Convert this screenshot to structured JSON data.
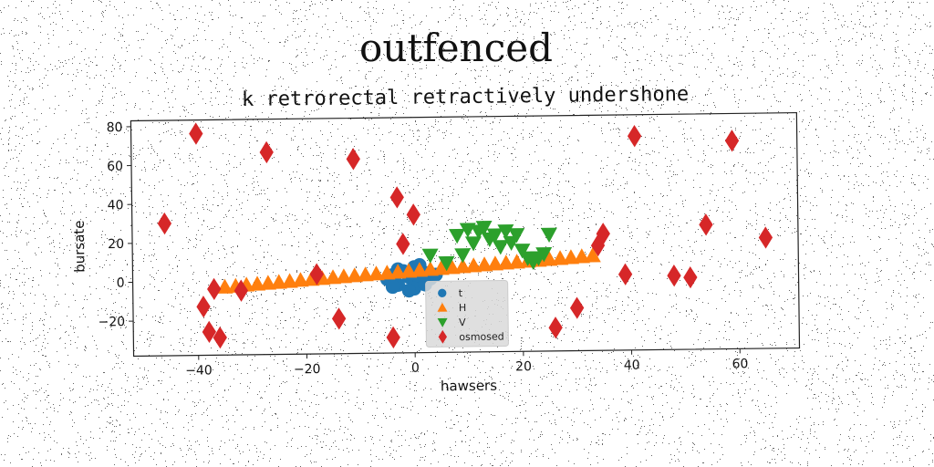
{
  "figure": {
    "title": "outfenced"
  },
  "chart_data": {
    "type": "scatter",
    "title": "k retrorectal retractively undershone",
    "xlabel": "hawsers",
    "ylabel": "bursate",
    "xlim": [
      -52,
      71
    ],
    "ylim": [
      -38,
      83
    ],
    "xticks": [
      -40,
      -20,
      0,
      20,
      40,
      60
    ],
    "yticks": [
      -20,
      0,
      20,
      40,
      60,
      80
    ],
    "grid": false,
    "legend_position": "lower-center",
    "series": [
      {
        "name": "t",
        "marker": "circle",
        "color": "#1f77b4",
        "points": [
          [
            -5,
            0
          ],
          [
            -4,
            2
          ],
          [
            -3,
            -3
          ],
          [
            -2,
            4
          ],
          [
            -1,
            1
          ],
          [
            0,
            6
          ],
          [
            1,
            -2
          ],
          [
            2,
            3
          ],
          [
            -4,
            -4
          ],
          [
            3,
            0
          ],
          [
            0,
            -5
          ],
          [
            -3,
            5
          ],
          [
            1,
            7
          ],
          [
            4,
            2
          ],
          [
            -1,
            -6
          ],
          [
            2,
            -3
          ]
        ]
      },
      {
        "name": "H",
        "marker": "triangle-up",
        "color": "#ff7f0e",
        "points": [
          [
            -35,
            -3
          ],
          [
            -33,
            -2.6
          ],
          [
            -31,
            -2.1
          ],
          [
            -29,
            -1.7
          ],
          [
            -27,
            -1.3
          ],
          [
            -25,
            -0.9
          ],
          [
            -23,
            -0.5
          ],
          [
            -21,
            0
          ],
          [
            -19,
            0.4
          ],
          [
            -17,
            0.8
          ],
          [
            -15,
            1.2
          ],
          [
            -13,
            1.6
          ],
          [
            -11,
            2
          ],
          [
            -9,
            2.4
          ],
          [
            -7,
            2.8
          ],
          [
            -5,
            3.2
          ],
          [
            -3,
            3.6
          ],
          [
            -1,
            4
          ],
          [
            1,
            4.4
          ],
          [
            3,
            4.8
          ],
          [
            5,
            5.2
          ],
          [
            7,
            5.6
          ],
          [
            9,
            6
          ],
          [
            11,
            6.4
          ],
          [
            13,
            6.8
          ],
          [
            15,
            7.2
          ],
          [
            17,
            7.6
          ],
          [
            19,
            8
          ],
          [
            21,
            8.4
          ],
          [
            23,
            8.8
          ],
          [
            25,
            9.2
          ],
          [
            27,
            9.6
          ],
          [
            29,
            10
          ],
          [
            31,
            10.4
          ],
          [
            33,
            10.8
          ]
        ]
      },
      {
        "name": "V",
        "marker": "triangle-down",
        "color": "#2ca02c",
        "points": [
          [
            3,
            12
          ],
          [
            8,
            22
          ],
          [
            10,
            25
          ],
          [
            11,
            18
          ],
          [
            12,
            24
          ],
          [
            13,
            26
          ],
          [
            14,
            20
          ],
          [
            15,
            22
          ],
          [
            16,
            16
          ],
          [
            17,
            24
          ],
          [
            18,
            18
          ],
          [
            19,
            22
          ],
          [
            20,
            14
          ],
          [
            21,
            10
          ],
          [
            22,
            8
          ],
          [
            23,
            10
          ],
          [
            24,
            12
          ],
          [
            25,
            22
          ],
          [
            6,
            8
          ],
          [
            9,
            12
          ]
        ]
      },
      {
        "name": "osmosed",
        "marker": "diamond",
        "color": "#d62728",
        "points": [
          [
            -46,
            30
          ],
          [
            -40,
            76
          ],
          [
            -39,
            -13
          ],
          [
            -38,
            -26
          ],
          [
            -37,
            -4
          ],
          [
            -36,
            -29
          ],
          [
            -32,
            -5
          ],
          [
            -27,
            66
          ],
          [
            -18,
            3
          ],
          [
            -14,
            -20
          ],
          [
            -11,
            62
          ],
          [
            -4,
            -30
          ],
          [
            -3,
            42
          ],
          [
            -2,
            18
          ],
          [
            0,
            33
          ],
          [
            34,
            16
          ],
          [
            35,
            22
          ],
          [
            26,
            -26
          ],
          [
            30,
            -16
          ],
          [
            39,
            1
          ],
          [
            41,
            72
          ],
          [
            48,
            0
          ],
          [
            51,
            -1
          ],
          [
            54,
            26
          ],
          [
            59,
            69
          ],
          [
            65,
            19
          ]
        ]
      }
    ]
  }
}
